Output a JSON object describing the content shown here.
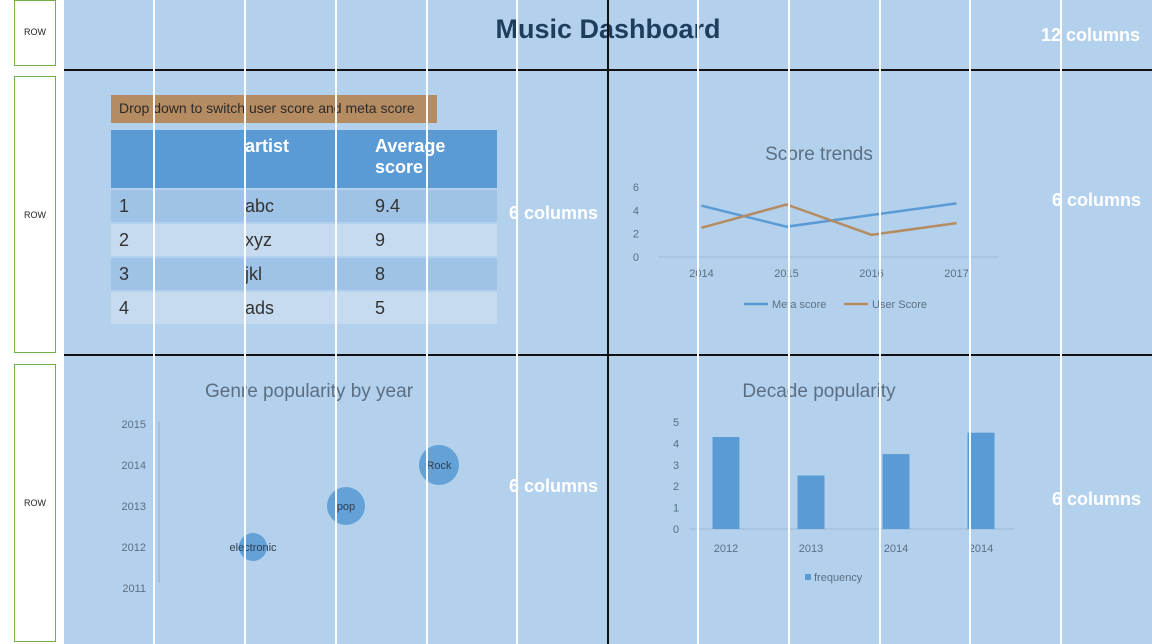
{
  "rows": [
    {
      "label": "ROW"
    },
    {
      "label": "ROW"
    },
    {
      "label": "ROW"
    }
  ],
  "header": {
    "title": "Music Dashboard",
    "columns_label": "12 columns"
  },
  "panels": {
    "table_panel": {
      "columns_label": "6 columns"
    },
    "trend_panel": {
      "columns_label": "6 columns"
    },
    "genre_panel": {
      "columns_label": "6 columns"
    },
    "decade_panel": {
      "columns_label": "6 columns"
    }
  },
  "dropdown": {
    "label": "Drop down to switch user score and meta score"
  },
  "score_table": {
    "headers": [
      "",
      "artist",
      "Average score"
    ],
    "rows": [
      [
        "1",
        "abc",
        "9.4"
      ],
      [
        "2",
        "xyz",
        "9"
      ],
      [
        "3",
        "jkl",
        "8"
      ],
      [
        "4",
        "ads",
        "5"
      ]
    ]
  },
  "colors": {
    "board": "#b3d1ec",
    "meta": "#5b9bd5",
    "user": "#b58b62",
    "bar": "#5b9bd5",
    "dropdown": "#b58b62"
  },
  "chart_data": [
    {
      "type": "line",
      "title": "Score trends",
      "categories": [
        "2014",
        "2015",
        "2016",
        "2017"
      ],
      "series": [
        {
          "name": "Meta score",
          "color": "#5b9bd5",
          "values": [
            4.4,
            2.6,
            3.6,
            4.6
          ]
        },
        {
          "name": "User Score",
          "color": "#b58b62",
          "values": [
            2.5,
            4.5,
            1.9,
            2.9
          ]
        }
      ],
      "ylim": [
        0,
        6
      ],
      "yticks": [
        "0",
        "2",
        "4",
        "6"
      ],
      "legend": "bottom"
    },
    {
      "type": "scatter",
      "title": "Genre popularity by year",
      "yticks": [
        "2011",
        "2012",
        "2013",
        "2014",
        "2015"
      ],
      "ylim": [
        2011,
        2015
      ],
      "points": [
        {
          "label": "electronic",
          "x": 1,
          "y": 2012
        },
        {
          "label": "pop",
          "x": 2,
          "y": 2013
        },
        {
          "label": "Rock",
          "x": 3,
          "y": 2014
        }
      ]
    },
    {
      "type": "bar",
      "title": "Decade popularity",
      "categories": [
        "2012",
        "2013",
        "2014",
        "2014"
      ],
      "values": [
        4.3,
        2.5,
        3.5,
        4.5
      ],
      "ylim": [
        0,
        5
      ],
      "yticks": [
        "0",
        "1",
        "2",
        "3",
        "4",
        "5"
      ],
      "series_name": "frequency",
      "legend": "bottom"
    }
  ]
}
